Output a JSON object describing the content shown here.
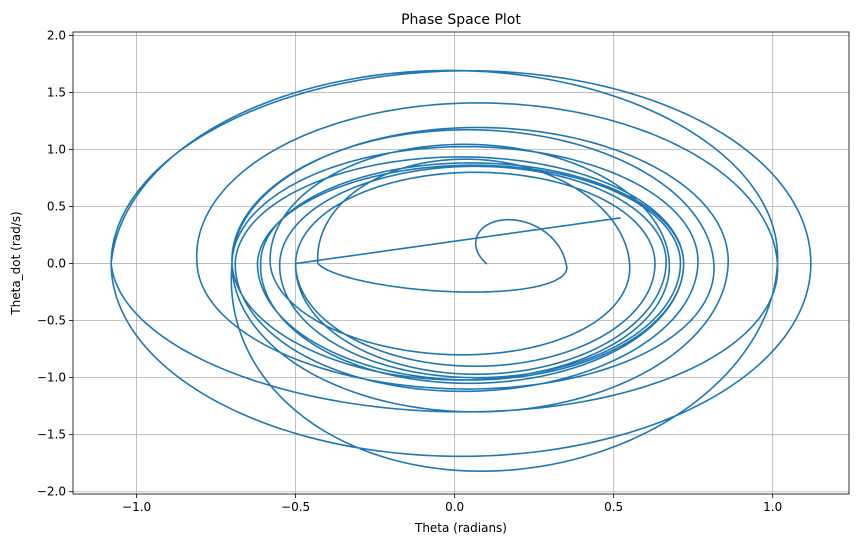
{
  "chart_data": {
    "type": "line",
    "title": "Phase Space Plot",
    "xlabel": "Theta (radians)",
    "ylabel": "Theta_dot (rad/s)",
    "xlim": [
      -1.2,
      1.24
    ],
    "ylim": [
      -2.02,
      2.03
    ],
    "xticks": [
      -1.0,
      -0.5,
      0.0,
      0.5,
      1.0
    ],
    "xtick_labels": [
      "−1.0",
      "−0.5",
      "0.0",
      "0.5",
      "1.0"
    ],
    "yticks": [
      -2.0,
      -1.5,
      -1.0,
      -0.5,
      0.0,
      0.5,
      1.0,
      1.5,
      2.0
    ],
    "ytick_labels": [
      "−2.0",
      "−1.5",
      "−1.0",
      "−0.5",
      "0.0",
      "0.5",
      "1.0",
      "1.5",
      "2.0"
    ],
    "grid": true,
    "color": "#1f77b4",
    "series": [
      {
        "start": [
          0.1,
          0.0
        ],
        "end": [
          0.52,
          0.4
        ],
        "turning_points": [
          {
            "theta_max": 0.23,
            "theta_dot_max": 0.2,
            "theta_min": 0.1,
            "theta_dot_min": -0.25
          },
          {
            "theta_max": 0.47,
            "theta_dot_max": 0.88,
            "theta_min": -0.43,
            "theta_dot_min": -0.8
          },
          {
            "theta_max": 0.63,
            "theta_dot_max": 1.02,
            "theta_min": -0.58,
            "theta_dot_min": -1.02
          },
          {
            "theta_max": 0.72,
            "theta_dot_max": 1.12,
            "theta_min": -0.7,
            "theta_dot_min": -1.1
          },
          {
            "theta_max": 0.91,
            "theta_dot_max": 1.33,
            "theta_min": -0.81,
            "theta_dot_min": -1.3
          },
          {
            "theta_max": 1.12,
            "theta_dot_max": 1.64,
            "theta_min": -1.08,
            "theta_dot_min": -1.69
          },
          {
            "theta_max": 1.12,
            "theta_dot_max": 1.84,
            "theta_min": -1.08,
            "theta_dot_min": -1.82
          },
          {
            "theta_max": 0.91,
            "theta_dot_max": 1.24,
            "theta_min": -0.7,
            "theta_dot_min": -1.3
          },
          {
            "theta_max": 0.81,
            "theta_dot_max": 1.05,
            "theta_min": -0.7,
            "theta_dot_min": -1.12
          },
          {
            "theta_max": 0.72,
            "theta_dot_max": 0.95,
            "theta_min": -0.69,
            "theta_dot_min": -1.05
          },
          {
            "theta_max": 0.72,
            "theta_dot_max": 0.89,
            "theta_min": -0.61,
            "theta_dot_min": -1.02
          },
          {
            "theta_max": 0.72,
            "theta_dot_max": 0.86,
            "theta_min": -0.62,
            "theta_dot_min": -1.0
          },
          {
            "theta_max": 0.7,
            "theta_dot_max": 0.87,
            "theta_min": -0.55,
            "theta_dot_min": -0.97
          },
          {
            "theta_max": 0.63,
            "theta_dot_max": 0.8,
            "theta_min": -0.5,
            "theta_dot_min": -0.9
          }
        ]
      }
    ]
  }
}
